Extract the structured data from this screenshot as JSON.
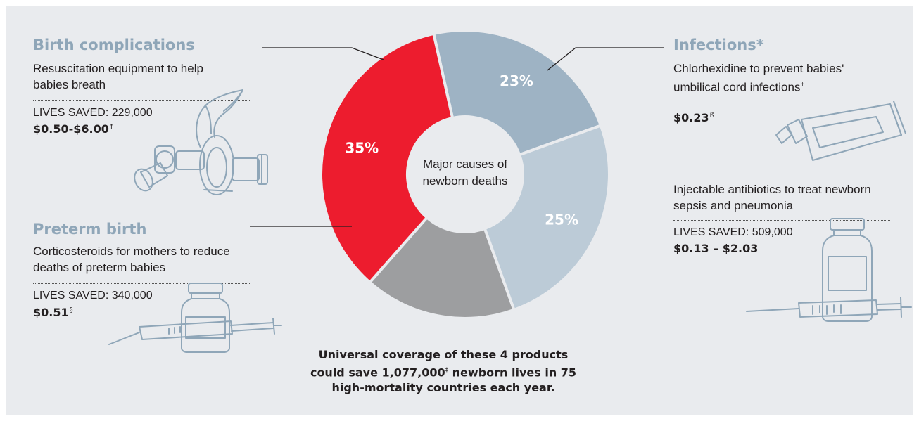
{
  "chart_data": {
    "type": "pie",
    "title": "Major causes of newborn deaths",
    "slices": [
      {
        "name": "Birth complications",
        "value": 23,
        "label": "23%",
        "color": "#9eb3c4"
      },
      {
        "name": "Infections*",
        "value": 25,
        "label": "25%",
        "color": "#bccbd7"
      },
      {
        "name": "",
        "value": 17,
        "label": "",
        "color": "#9d9ea0"
      },
      {
        "name": "Preterm birth",
        "value": 35,
        "label": "35%",
        "color": "#ed1c2e"
      }
    ]
  },
  "sections": {
    "birth": {
      "heading": "Birth complications",
      "description": "Resuscitation equipment to help babies breath",
      "lives": "LIVES SAVED: 229,000",
      "price": "$0.50-$6.00",
      "price_note": "†"
    },
    "preterm": {
      "heading": "Preterm birth",
      "description": "Corticosteroids for mothers to reduce deaths of preterm babies",
      "lives": "LIVES SAVED: 340,000",
      "price": "$0.51",
      "price_note": "§"
    },
    "infections": {
      "heading": "Infections*",
      "description": "Chlorhexidine to prevent babies' umbilical cord infections",
      "description_note": "+",
      "price": "$0.23",
      "price_note": "ß"
    },
    "antibiotics": {
      "description": "Injectable antibiotics to treat newborn sepsis and pneumonia",
      "lives": "LIVES SAVED: 509,000",
      "price": "$0.13 – $2.03"
    }
  },
  "summary": {
    "part1": "Universal coverage of these 4 products could save 1,077,000",
    "note": "‡",
    "part2": " newborn lives in 75 high-mortality countries each year."
  },
  "illustrations": [
    "resuscitator-icon",
    "syringe-vial-icon",
    "ointment-tube-icon",
    "vial-syringe-icon"
  ]
}
